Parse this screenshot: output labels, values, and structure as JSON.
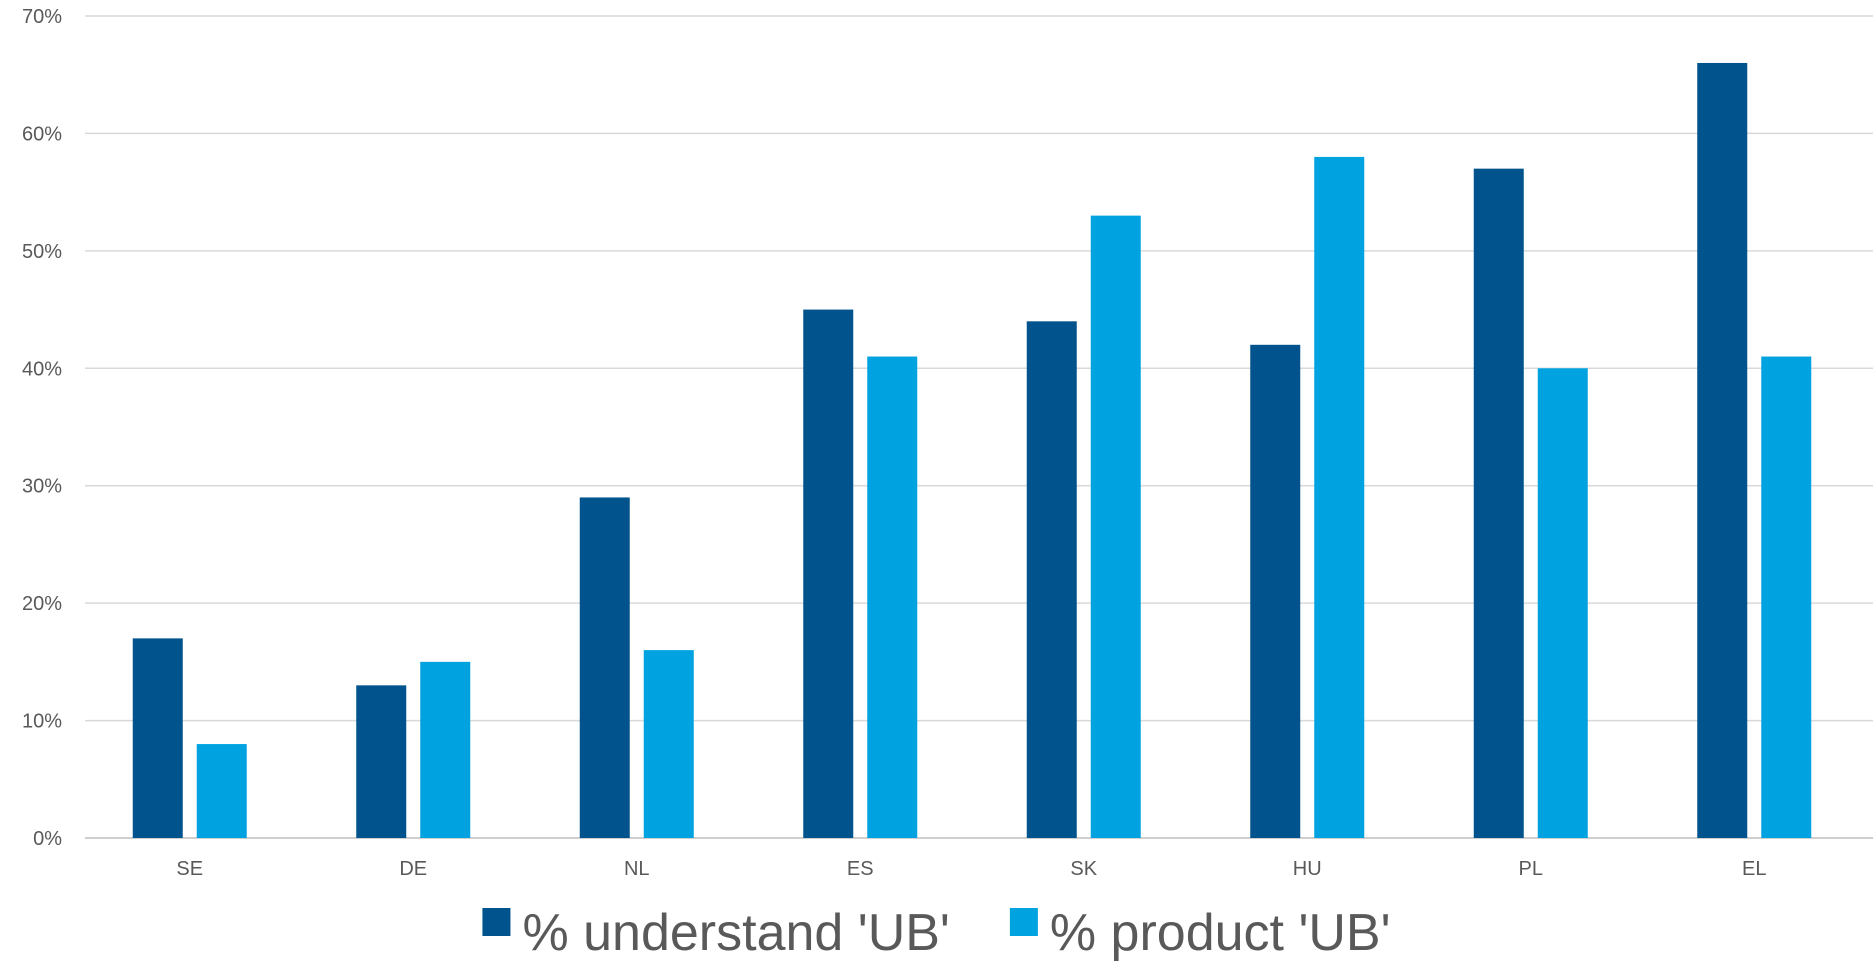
{
  "chart_data": {
    "type": "bar",
    "categories": [
      "SE",
      "DE",
      "NL",
      "ES",
      "SK",
      "HU",
      "PL",
      "EL"
    ],
    "series": [
      {
        "name": "% understand 'UB'",
        "color": "#00538c",
        "values": [
          17,
          13,
          29,
          45,
          44,
          42,
          57,
          66
        ]
      },
      {
        "name": "% product 'UB'",
        "color": "#00a3e0",
        "values": [
          8,
          15,
          16,
          41,
          53,
          58,
          40,
          41
        ]
      }
    ],
    "ylim": [
      0,
      70
    ],
    "yticks": [
      0,
      10,
      20,
      30,
      40,
      50,
      60,
      70
    ],
    "ytick_labels": [
      "0%",
      "10%",
      "20%",
      "30%",
      "40%",
      "50%",
      "60%",
      "70%"
    ],
    "grid": true,
    "legend": "bottom",
    "title": "",
    "xlabel": "",
    "ylabel": ""
  }
}
